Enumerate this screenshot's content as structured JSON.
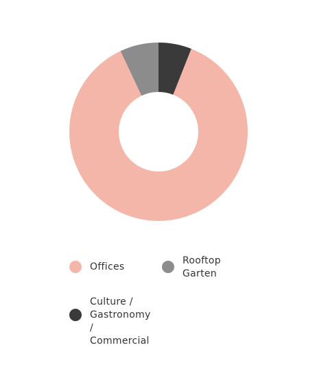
{
  "chart_data": {
    "type": "pie",
    "donut": true,
    "categories": [
      "Offices",
      "Rooftop Garten",
      "Culture / Gastronomy / Commercial"
    ],
    "values": [
      87,
      7,
      6
    ],
    "colors": [
      "#f4b6a8",
      "#8c8c8c",
      "#3a3a3a"
    ]
  }
}
